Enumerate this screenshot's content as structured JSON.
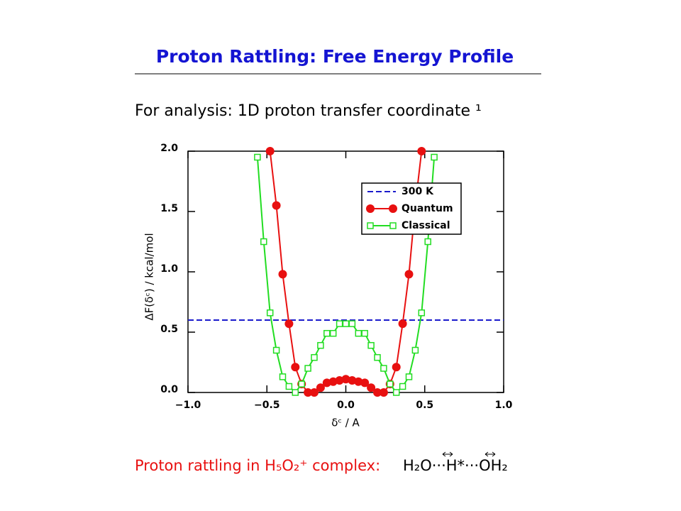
{
  "title": "Proton Rattling: Free Energy Profile",
  "subtitle": "For analysis: 1D proton transfer coordinate ¹",
  "chart_data": {
    "type": "line",
    "xlabel": "δᶜ / A",
    "ylabel": "ΔF(δᶜ) / kcal/mol",
    "xlim": [
      -1,
      1
    ],
    "ylim": [
      0,
      2
    ],
    "xticks": [
      {
        "value": -1,
        "label": "−1.0"
      },
      {
        "value": -0.5,
        "label": "−0.5"
      },
      {
        "value": 0,
        "label": "0.0"
      },
      {
        "value": 0.5,
        "label": "0.5"
      },
      {
        "value": 1,
        "label": "1.0"
      }
    ],
    "yticks": [
      {
        "value": 0,
        "label": "0.0"
      },
      {
        "value": 0.5,
        "label": "0.5"
      },
      {
        "value": 1,
        "label": "1.0"
      },
      {
        "value": 1.5,
        "label": "1.5"
      },
      {
        "value": 2,
        "label": "2.0"
      }
    ],
    "legend": "upper right",
    "series": [
      {
        "name": "300 K",
        "color": "#1a1acc",
        "style": "dashed",
        "x": [
          -1,
          1
        ],
        "values": [
          0.6,
          0.6
        ]
      },
      {
        "name": "Quantum",
        "color": "#e81010",
        "marker": "circle",
        "x": [
          -0.48,
          -0.44,
          -0.4,
          -0.36,
          -0.32,
          -0.28,
          -0.24,
          -0.2,
          -0.16,
          -0.12,
          -0.08,
          -0.04,
          0,
          0.04,
          0.08,
          0.12,
          0.16,
          0.2,
          0.24,
          0.28,
          0.32,
          0.36,
          0.4,
          0.44,
          0.48
        ],
        "values": [
          2.0,
          1.55,
          0.98,
          0.57,
          0.21,
          0.07,
          0.0,
          0.0,
          0.04,
          0.08,
          0.09,
          0.1,
          0.11,
          0.1,
          0.09,
          0.08,
          0.04,
          0.0,
          0.0,
          0.07,
          0.21,
          0.57,
          0.98,
          1.55,
          2.0
        ]
      },
      {
        "name": "Classical",
        "color": "#22dd22",
        "marker": "square",
        "x": [
          -0.56,
          -0.52,
          -0.48,
          -0.44,
          -0.4,
          -0.36,
          -0.32,
          -0.28,
          -0.24,
          -0.2,
          -0.16,
          -0.12,
          -0.08,
          -0.04,
          0,
          0.04,
          0.08,
          0.12,
          0.16,
          0.2,
          0.24,
          0.28,
          0.32,
          0.36,
          0.4,
          0.44,
          0.48,
          0.52,
          0.56
        ],
        "values": [
          1.95,
          1.25,
          0.66,
          0.35,
          0.13,
          0.05,
          0.0,
          0.07,
          0.2,
          0.29,
          0.39,
          0.49,
          0.49,
          0.57,
          0.57,
          0.57,
          0.49,
          0.49,
          0.39,
          0.29,
          0.2,
          0.07,
          0.0,
          0.05,
          0.13,
          0.35,
          0.66,
          1.25,
          1.95
        ]
      }
    ]
  },
  "caption": "Proton rattling in H₅O₂⁺ complex:",
  "formula": "H₂O···H*···OH₂"
}
